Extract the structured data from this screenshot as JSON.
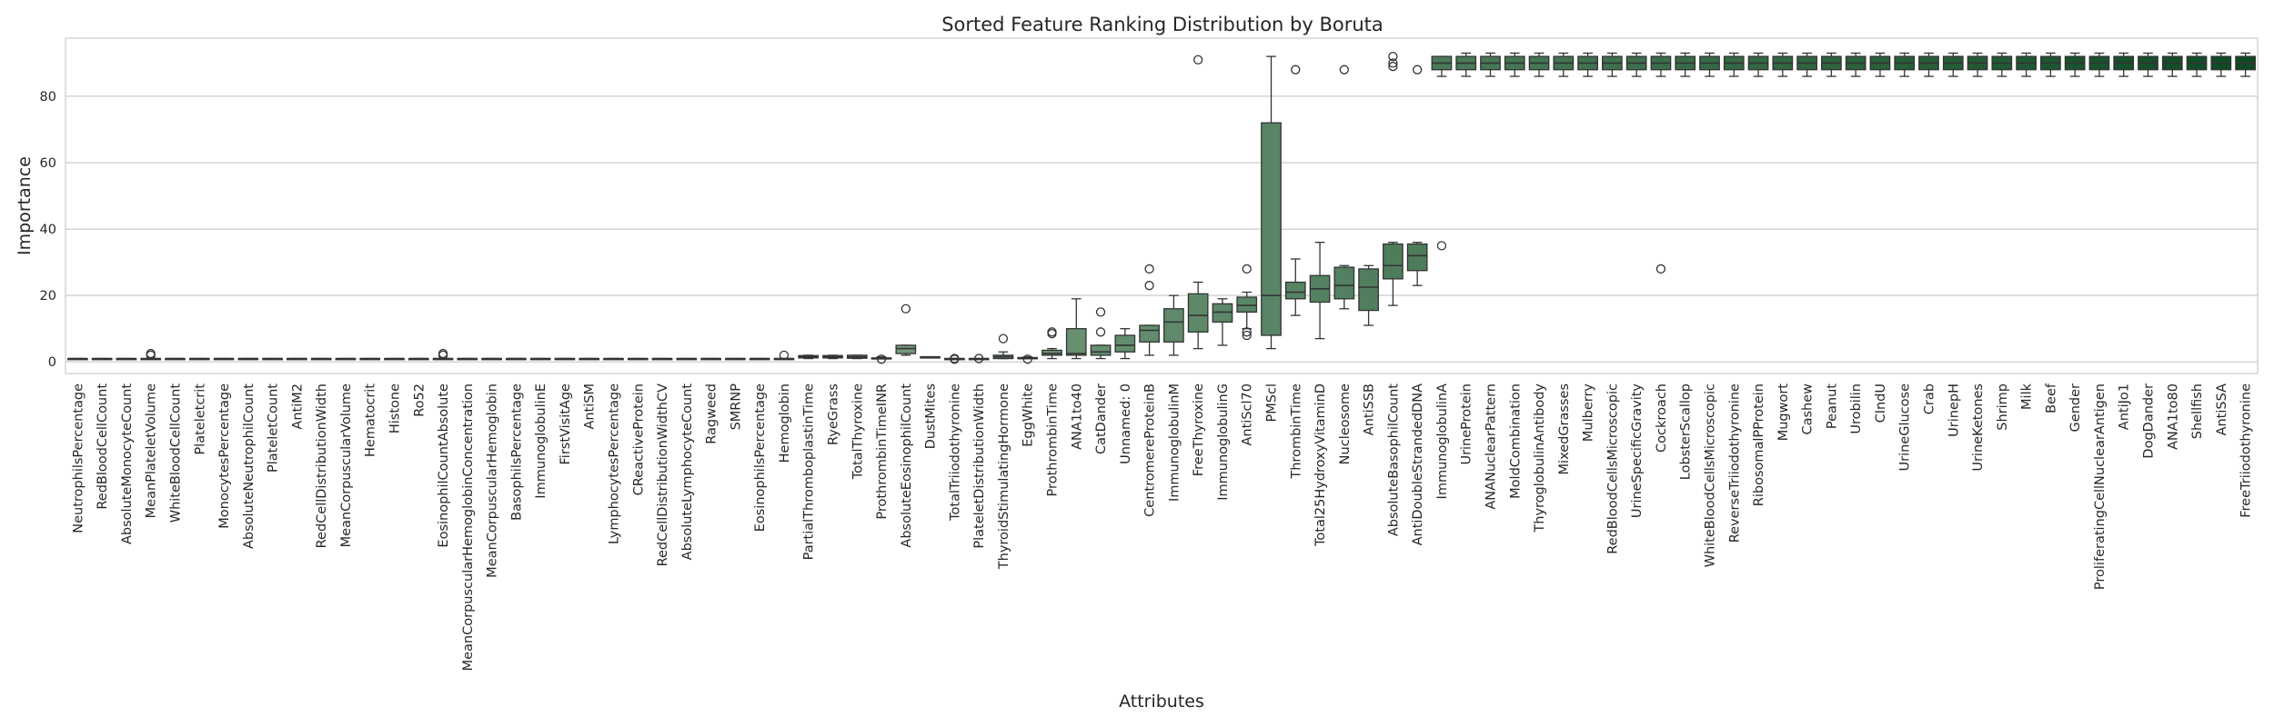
{
  "chart_data": {
    "type": "box",
    "title": "Sorted Feature Ranking Distribution by Boruta",
    "xlabel": "Attributes",
    "ylabel": "Importance",
    "ylim": [
      -3.5,
      97.5
    ],
    "yticks": [
      0,
      20,
      40,
      60,
      80
    ],
    "grid": true,
    "palette": {
      "low": "#e3f1dc",
      "high": "#0d4a24"
    },
    "categories": [
      "NeutrophilsPercentage",
      "RedBloodCellCount",
      "AbsoluteMonocyteCount",
      "MeanPlateletVolume",
      "WhiteBloodCellCount",
      "Plateletcrit",
      "MonocytesPercentage",
      "AbsoluteNeutrophilCount",
      "PlateletCount",
      "AntiM2",
      "RedCellDistributionWidth",
      "MeanCorpuscularVolume",
      "Hematocrit",
      "Histone",
      "Ro52",
      "EosinophilCountAbsolute",
      "MeanCorpuscularHemoglobinConcentration",
      "MeanCorpuscularHemoglobin",
      "BasophilsPercentage",
      "ImmunoglobulinE",
      "FirstVisitAge",
      "AntiSM",
      "LymphocytesPercentage",
      "CReactiveProtein",
      "RedCellDistributionWidthCV",
      "AbsoluteLymphocyteCount",
      "Ragweed",
      "SMRNP",
      "EosinophilsPercentage",
      "Hemoglobin",
      "PartialThromboplastinTime",
      "RyeGrass",
      "TotalThyroxine",
      "ProthrombinTimeINR",
      "AbsoluteEosinophilCount",
      "DustMites",
      "TotalTriiodothyronine",
      "PlateletDistributionWidth",
      "ThyroidStimulatingHormone",
      "EggWhite",
      "ProthrombinTime",
      "ANA1to40",
      "CatDander",
      "Unnamed: 0",
      "CentromereProteinB",
      "ImmunoglobulinM",
      "FreeThyroxine",
      "ImmunoglobulinG",
      "AntiScl70",
      "PMScl",
      "ThrombinTime",
      "Total25HydroxyVitaminD",
      "Nucleosome",
      "AntiSSB",
      "AbsoluteBasophilCount",
      "AntiDoubleStrandedDNA",
      "ImmunoglobulinA",
      "UrineProtein",
      "ANANuclearPattern",
      "MoldCombination",
      "ThyroglobulinAntibody",
      "MixedGrasses",
      "Mulberry",
      "RedBloodCellsMicroscopic",
      "UrineSpecificGravity",
      "Cockroach",
      "LobsterScallop",
      "WhiteBloodCellsMicroscopic",
      "ReverseTriiodothyronine",
      "RibosomalPProtein",
      "Mugwort",
      "Cashew",
      "Peanut",
      "Urobilin",
      "CIndU",
      "UrineGlucose",
      "Crab",
      "UrinepH",
      "UrineKetones",
      "Shrimp",
      "Milk",
      "Beef",
      "Gender",
      "ProliferatingCellNuclearAntigen",
      "AntiJo1",
      "DogDander",
      "ANA1to80",
      "Shellfish",
      "AntiSSA",
      "FreeTriiodothyronine"
    ],
    "boxes": [
      {
        "min": 1,
        "q1": 1,
        "median": 1,
        "q3": 1,
        "max": 1,
        "outliers": []
      },
      {
        "min": 1,
        "q1": 1,
        "median": 1,
        "q3": 1,
        "max": 1,
        "outliers": []
      },
      {
        "min": 1,
        "q1": 1,
        "median": 1,
        "q3": 1,
        "max": 1,
        "outliers": []
      },
      {
        "min": 1,
        "q1": 1,
        "median": 1,
        "q3": 1,
        "max": 1,
        "outliers": [
          2,
          2.5
        ]
      },
      {
        "min": 1,
        "q1": 1,
        "median": 1,
        "q3": 1,
        "max": 1,
        "outliers": []
      },
      {
        "min": 1,
        "q1": 1,
        "median": 1,
        "q3": 1,
        "max": 1,
        "outliers": []
      },
      {
        "min": 1,
        "q1": 1,
        "median": 1,
        "q3": 1,
        "max": 1,
        "outliers": []
      },
      {
        "min": 1,
        "q1": 1,
        "median": 1,
        "q3": 1,
        "max": 1,
        "outliers": []
      },
      {
        "min": 1,
        "q1": 1,
        "median": 1,
        "q3": 1,
        "max": 1,
        "outliers": []
      },
      {
        "min": 1,
        "q1": 1,
        "median": 1,
        "q3": 1,
        "max": 1,
        "outliers": []
      },
      {
        "min": 1,
        "q1": 1,
        "median": 1,
        "q3": 1,
        "max": 1,
        "outliers": []
      },
      {
        "min": 1,
        "q1": 1,
        "median": 1,
        "q3": 1,
        "max": 1,
        "outliers": []
      },
      {
        "min": 1,
        "q1": 1,
        "median": 1,
        "q3": 1,
        "max": 1,
        "outliers": []
      },
      {
        "min": 1,
        "q1": 1,
        "median": 1,
        "q3": 1,
        "max": 1,
        "outliers": []
      },
      {
        "min": 1,
        "q1": 1,
        "median": 1,
        "q3": 1,
        "max": 1,
        "outliers": []
      },
      {
        "min": 1,
        "q1": 1,
        "median": 1,
        "q3": 1,
        "max": 1,
        "outliers": [
          2,
          2.5
        ]
      },
      {
        "min": 1,
        "q1": 1,
        "median": 1,
        "q3": 1,
        "max": 1,
        "outliers": []
      },
      {
        "min": 1,
        "q1": 1,
        "median": 1,
        "q3": 1,
        "max": 1,
        "outliers": []
      },
      {
        "min": 1,
        "q1": 1,
        "median": 1,
        "q3": 1,
        "max": 1,
        "outliers": []
      },
      {
        "min": 1,
        "q1": 1,
        "median": 1,
        "q3": 1,
        "max": 1,
        "outliers": []
      },
      {
        "min": 1,
        "q1": 1,
        "median": 1,
        "q3": 1,
        "max": 1,
        "outliers": []
      },
      {
        "min": 1,
        "q1": 1,
        "median": 1,
        "q3": 1,
        "max": 1,
        "outliers": []
      },
      {
        "min": 1,
        "q1": 1,
        "median": 1,
        "q3": 1,
        "max": 1,
        "outliers": []
      },
      {
        "min": 1,
        "q1": 1,
        "median": 1,
        "q3": 1,
        "max": 1,
        "outliers": []
      },
      {
        "min": 1,
        "q1": 1,
        "median": 1,
        "q3": 1,
        "max": 1,
        "outliers": []
      },
      {
        "min": 1,
        "q1": 1,
        "median": 1,
        "q3": 1,
        "max": 1,
        "outliers": []
      },
      {
        "min": 1,
        "q1": 1,
        "median": 1,
        "q3": 1,
        "max": 1,
        "outliers": []
      },
      {
        "min": 1,
        "q1": 1,
        "median": 1,
        "q3": 1,
        "max": 1,
        "outliers": []
      },
      {
        "min": 1,
        "q1": 1,
        "median": 1,
        "q3": 1,
        "max": 1,
        "outliers": []
      },
      {
        "min": 1,
        "q1": 1,
        "median": 1,
        "q3": 1,
        "max": 1,
        "outliers": [
          2
        ]
      },
      {
        "min": 1,
        "q1": 1.2,
        "median": 1.5,
        "q3": 1.9,
        "max": 2,
        "outliers": []
      },
      {
        "min": 1,
        "q1": 1.2,
        "median": 1.5,
        "q3": 1.9,
        "max": 2,
        "outliers": []
      },
      {
        "min": 1,
        "q1": 1.1,
        "median": 1.5,
        "q3": 2,
        "max": 2,
        "outliers": []
      },
      {
        "min": 1,
        "q1": 1,
        "median": 1,
        "q3": 1.2,
        "max": 1.5,
        "outliers": [
          0.8
        ]
      },
      {
        "min": 2,
        "q1": 2.5,
        "median": 4,
        "q3": 5,
        "max": 5,
        "outliers": [
          16
        ]
      },
      {
        "min": 1.5,
        "q1": 1.5,
        "median": 1.5,
        "q3": 1.5,
        "max": 1.5,
        "outliers": []
      },
      {
        "min": 1,
        "q1": 1,
        "median": 1,
        "q3": 1,
        "max": 1,
        "outliers": [
          1,
          0.8
        ]
      },
      {
        "min": 1,
        "q1": 1,
        "median": 1,
        "q3": 1,
        "max": 1,
        "outliers": [
          1
        ]
      },
      {
        "min": 1,
        "q1": 1,
        "median": 1.5,
        "q3": 2,
        "max": 3,
        "outliers": [
          7
        ]
      },
      {
        "min": 1,
        "q1": 1,
        "median": 1,
        "q3": 1.3,
        "max": 1.5,
        "outliers": [
          0.8
        ]
      },
      {
        "min": 1,
        "q1": 2,
        "median": 2.5,
        "q3": 3.5,
        "max": 4,
        "outliers": [
          8.5,
          9
        ]
      },
      {
        "min": 1,
        "q1": 2,
        "median": 2.5,
        "q3": 10,
        "max": 19,
        "outliers": []
      },
      {
        "min": 1,
        "q1": 2,
        "median": 3,
        "q3": 5,
        "max": 5,
        "outliers": [
          9,
          15
        ]
      },
      {
        "min": 1,
        "q1": 3,
        "median": 5,
        "q3": 8,
        "max": 10,
        "outliers": []
      },
      {
        "min": 2,
        "q1": 6,
        "median": 9.5,
        "q3": 11,
        "max": 11,
        "outliers": [
          23,
          28
        ]
      },
      {
        "min": 2,
        "q1": 6,
        "median": 12,
        "q3": 16,
        "max": 20,
        "outliers": []
      },
      {
        "min": 4,
        "q1": 9,
        "median": 14,
        "q3": 20.5,
        "max": 24,
        "outliers": [
          91
        ]
      },
      {
        "min": 5,
        "q1": 12,
        "median": 15,
        "q3": 17.5,
        "max": 19,
        "outliers": []
      },
      {
        "min": 10,
        "q1": 15,
        "median": 17,
        "q3": 19.5,
        "max": 21,
        "outliers": [
          8,
          9,
          28
        ]
      },
      {
        "min": 4,
        "q1": 8,
        "median": 20,
        "q3": 72,
        "max": 92,
        "outliers": []
      },
      {
        "min": 14,
        "q1": 19,
        "median": 21,
        "q3": 24,
        "max": 31,
        "outliers": [
          88
        ]
      },
      {
        "min": 7,
        "q1": 18,
        "median": 22,
        "q3": 26,
        "max": 36,
        "outliers": []
      },
      {
        "min": 16,
        "q1": 19,
        "median": 23,
        "q3": 28.5,
        "max": 29,
        "outliers": [
          88
        ]
      },
      {
        "min": 11,
        "q1": 15.5,
        "median": 22.5,
        "q3": 28,
        "max": 29,
        "outliers": []
      },
      {
        "min": 17,
        "q1": 25,
        "median": 29,
        "q3": 35.5,
        "max": 36,
        "outliers": [
          89,
          90,
          92
        ]
      },
      {
        "min": 23,
        "q1": 27.5,
        "median": 32,
        "q3": 35.5,
        "max": 36,
        "outliers": [
          88
        ]
      },
      {
        "min": 86,
        "q1": 88,
        "median": 90,
        "q3": 92,
        "max": 92,
        "outliers": [
          35
        ]
      },
      {
        "min": 86,
        "q1": 88,
        "median": 90,
        "q3": 92,
        "max": 93,
        "outliers": []
      },
      {
        "min": 86,
        "q1": 88,
        "median": 90,
        "q3": 92,
        "max": 93,
        "outliers": []
      },
      {
        "min": 86,
        "q1": 88,
        "median": 90,
        "q3": 92,
        "max": 93,
        "outliers": []
      },
      {
        "min": 86,
        "q1": 88,
        "median": 90,
        "q3": 92,
        "max": 93,
        "outliers": []
      },
      {
        "min": 86,
        "q1": 88,
        "median": 90,
        "q3": 92,
        "max": 93,
        "outliers": []
      },
      {
        "min": 86,
        "q1": 88,
        "median": 90,
        "q3": 92,
        "max": 93,
        "outliers": []
      },
      {
        "min": 86,
        "q1": 88,
        "median": 90,
        "q3": 92,
        "max": 93,
        "outliers": []
      },
      {
        "min": 86,
        "q1": 88,
        "median": 90,
        "q3": 92,
        "max": 93,
        "outliers": []
      },
      {
        "min": 86,
        "q1": 88,
        "median": 90,
        "q3": 92,
        "max": 93,
        "outliers": [
          28
        ]
      },
      {
        "min": 86,
        "q1": 88,
        "median": 90,
        "q3": 92,
        "max": 93,
        "outliers": []
      },
      {
        "min": 86,
        "q1": 88,
        "median": 90,
        "q3": 92,
        "max": 93,
        "outliers": []
      },
      {
        "min": 86,
        "q1": 88,
        "median": 90,
        "q3": 92,
        "max": 93,
        "outliers": []
      },
      {
        "min": 86,
        "q1": 88,
        "median": 90,
        "q3": 92,
        "max": 93,
        "outliers": []
      },
      {
        "min": 86,
        "q1": 88,
        "median": 90,
        "q3": 92,
        "max": 93,
        "outliers": []
      },
      {
        "min": 86,
        "q1": 88,
        "median": 90,
        "q3": 92,
        "max": 93,
        "outliers": []
      },
      {
        "min": 86,
        "q1": 88,
        "median": 90,
        "q3": 92,
        "max": 93,
        "outliers": []
      },
      {
        "min": 86,
        "q1": 88,
        "median": 90,
        "q3": 92,
        "max": 93,
        "outliers": []
      },
      {
        "min": 86,
        "q1": 88,
        "median": 90,
        "q3": 92,
        "max": 93,
        "outliers": []
      },
      {
        "min": 86,
        "q1": 88,
        "median": 90,
        "q3": 92,
        "max": 93,
        "outliers": []
      },
      {
        "min": 86,
        "q1": 88,
        "median": 90,
        "q3": 92,
        "max": 93,
        "outliers": []
      },
      {
        "min": 86,
        "q1": 88,
        "median": 90,
        "q3": 92,
        "max": 93,
        "outliers": []
      },
      {
        "min": 86,
        "q1": 88,
        "median": 90,
        "q3": 92,
        "max": 93,
        "outliers": []
      },
      {
        "min": 86,
        "q1": 88,
        "median": 90,
        "q3": 92,
        "max": 93,
        "outliers": []
      },
      {
        "min": 86,
        "q1": 88,
        "median": 90,
        "q3": 92,
        "max": 93,
        "outliers": []
      },
      {
        "min": 86,
        "q1": 88,
        "median": 90,
        "q3": 92,
        "max": 93,
        "outliers": []
      },
      {
        "min": 86,
        "q1": 88,
        "median": 90,
        "q3": 92,
        "max": 93,
        "outliers": []
      },
      {
        "min": 86,
        "q1": 88,
        "median": 90,
        "q3": 92,
        "max": 93,
        "outliers": []
      },
      {
        "min": 86,
        "q1": 88,
        "median": 90,
        "q3": 92,
        "max": 93,
        "outliers": []
      },
      {
        "min": 86,
        "q1": 88,
        "median": 90,
        "q3": 92,
        "max": 93,
        "outliers": []
      },
      {
        "min": 86,
        "q1": 88,
        "median": 90,
        "q3": 92,
        "max": 93,
        "outliers": []
      },
      {
        "min": 86,
        "q1": 88,
        "median": 90,
        "q3": 92,
        "max": 93,
        "outliers": []
      },
      {
        "min": 86,
        "q1": 88,
        "median": 90,
        "q3": 92,
        "max": 93,
        "outliers": []
      },
      {
        "min": 86,
        "q1": 88,
        "median": 90,
        "q3": 92,
        "max": 93,
        "outliers": []
      }
    ]
  }
}
